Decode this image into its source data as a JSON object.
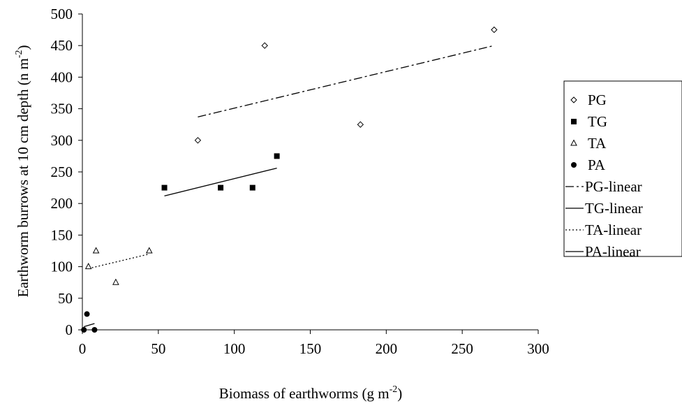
{
  "chart_data": {
    "type": "scatter",
    "xlabel": "Biomass of earthworms (g m",
    "xlabel_sup": "-2",
    "xlabel_tail": ")",
    "ylabel": "Earthworm burrows at 10 cm depth (n m",
    "ylabel_sup": "-2",
    "ylabel_tail": ")",
    "xlim": [
      0,
      300
    ],
    "ylim": [
      0,
      500
    ],
    "xticks": [
      0,
      50,
      100,
      150,
      200,
      250,
      300
    ],
    "yticks": [
      0,
      50,
      100,
      150,
      200,
      250,
      300,
      350,
      400,
      450,
      500
    ],
    "grid": false,
    "legend_position": "right",
    "series": [
      {
        "name": "PG",
        "marker": "diamond-open",
        "points": [
          [
            76,
            300
          ],
          [
            120,
            450
          ],
          [
            183,
            325
          ],
          [
            271,
            475
          ]
        ]
      },
      {
        "name": "TG",
        "marker": "square-filled",
        "points": [
          [
            54,
            225
          ],
          [
            91,
            225
          ],
          [
            112,
            225
          ],
          [
            128,
            275
          ]
        ]
      },
      {
        "name": "TA",
        "marker": "triangle-open",
        "points": [
          [
            4,
            100
          ],
          [
            9,
            125
          ],
          [
            22,
            75
          ],
          [
            44,
            125
          ]
        ]
      },
      {
        "name": "PA",
        "marker": "circle-filled",
        "points": [
          [
            1,
            0
          ],
          [
            3,
            25
          ],
          [
            8,
            0
          ]
        ]
      }
    ],
    "trendlines": [
      {
        "name": "PG-linear",
        "dash": "dashdot",
        "from": [
          76,
          337
        ],
        "to": [
          271,
          450
        ]
      },
      {
        "name": "TG-linear",
        "dash": "solid",
        "from": [
          54,
          212
        ],
        "to": [
          128,
          256
        ]
      },
      {
        "name": "TA-linear",
        "dash": "dotted",
        "from": [
          4,
          97
        ],
        "to": [
          44,
          120
        ]
      },
      {
        "name": "PA-linear",
        "dash": "solid",
        "from": [
          1,
          5
        ],
        "to": [
          8,
          10
        ]
      }
    ]
  }
}
